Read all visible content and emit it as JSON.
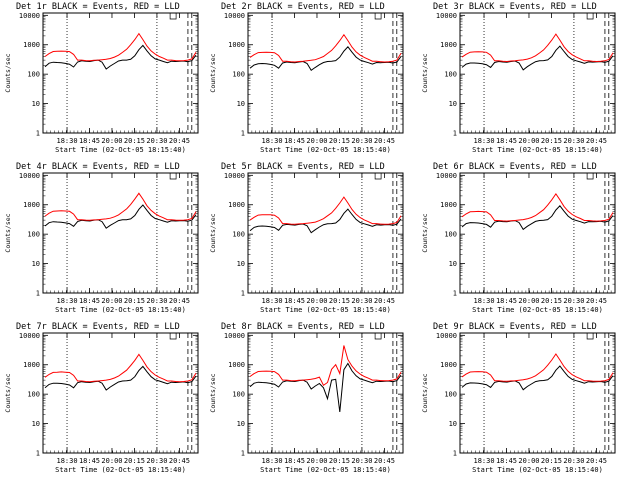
{
  "chart_data": [
    {
      "type": "line",
      "title": "Det 1r BLACK = Events, RED = LLD",
      "ylabel": "Counts/sec",
      "xlabel": "Start Time (02-Oct-05 18:15:40)",
      "x_ticks": [
        "18:30",
        "18:45",
        "20:00",
        "20:15",
        "20:30",
        "20:45"
      ],
      "y_ticks": [
        "1",
        "10",
        "100",
        "1000",
        "10000"
      ],
      "yscale": "log",
      "ylim": [
        1,
        12000
      ],
      "vlines_dotted": [
        "18:30",
        "20:30"
      ],
      "vlines_dashed": [
        "20:50",
        "20:52"
      ],
      "series": [
        {
          "color": "#000000",
          "values": [
            180,
            235,
            255,
            250,
            245,
            232,
            218,
            175,
            260,
            285,
            275,
            270,
            290,
            300,
            255,
            150,
            190,
            230,
            280,
            300,
            300,
            320,
            420,
            680,
            950,
            620,
            420,
            330,
            300,
            270,
            245,
            275,
            270,
            275,
            280,
            265,
            290,
            440
          ]
        },
        {
          "color": "#ff0000",
          "values": [
            400,
            500,
            590,
            600,
            610,
            600,
            585,
            470,
            300,
            300,
            290,
            285,
            295,
            300,
            310,
            320,
            340,
            380,
            440,
            550,
            700,
            1000,
            1500,
            2400,
            1500,
            900,
            620,
            480,
            400,
            350,
            300,
            300,
            290,
            285,
            290,
            300,
            330,
            560
          ]
        }
      ]
    },
    {
      "type": "line",
      "title": "Det 2r BLACK = Events, RED = LLD",
      "ylabel": "Counts/sec",
      "xlabel": "Start Time (02-Oct-05 18:15:40)",
      "x_ticks": [
        "18:30",
        "18:45",
        "20:00",
        "20:15",
        "20:30",
        "20:45"
      ],
      "y_ticks": [
        "1",
        "10",
        "100",
        "1000",
        "10000"
      ],
      "yscale": "log",
      "ylim": [
        1,
        12000
      ],
      "vlines_dotted": [
        "18:30",
        "20:30"
      ],
      "vlines_dashed": [
        "20:50",
        "20:52"
      ],
      "series": [
        {
          "color": "#000000",
          "values": [
            160,
            205,
            225,
            230,
            225,
            215,
            200,
            160,
            240,
            260,
            250,
            245,
            260,
            270,
            230,
            135,
            170,
            210,
            250,
            270,
            275,
            290,
            380,
            610,
            850,
            560,
            380,
            300,
            270,
            245,
            220,
            250,
            245,
            250,
            255,
            240,
            260,
            400
          ]
        },
        {
          "color": "#ff0000",
          "values": [
            370,
            460,
            540,
            550,
            560,
            550,
            535,
            430,
            275,
            275,
            265,
            260,
            270,
            275,
            285,
            295,
            310,
            350,
            400,
            505,
            640,
            920,
            1380,
            2200,
            1380,
            830,
            570,
            440,
            370,
            320,
            275,
            275,
            265,
            260,
            265,
            275,
            300,
            510
          ]
        }
      ]
    },
    {
      "type": "line",
      "title": "Det 3r BLACK = Events, RED = LLD",
      "ylabel": "Counts/sec",
      "xlabel": "Start Time (02-Oct-05 18:15:40)",
      "x_ticks": [
        "18:30",
        "18:45",
        "20:00",
        "20:15",
        "20:30",
        "20:45"
      ],
      "y_ticks": [
        "1",
        "10",
        "100",
        "1000",
        "10000"
      ],
      "yscale": "log",
      "ylim": [
        1,
        12000
      ],
      "vlines_dotted": [
        "18:30",
        "20:30"
      ],
      "vlines_dashed": [
        "20:50",
        "20:52"
      ],
      "series": [
        {
          "color": "#000000",
          "values": [
            170,
            220,
            240,
            240,
            235,
            225,
            210,
            170,
            250,
            270,
            260,
            255,
            270,
            280,
            240,
            140,
            180,
            220,
            265,
            285,
            290,
            305,
            400,
            650,
            900,
            590,
            400,
            315,
            285,
            260,
            232,
            262,
            258,
            262,
            268,
            252,
            275,
            420
          ]
        },
        {
          "color": "#ff0000",
          "values": [
            380,
            475,
            560,
            570,
            580,
            570,
            555,
            445,
            285,
            285,
            275,
            270,
            280,
            285,
            295,
            305,
            325,
            360,
            420,
            525,
            670,
            960,
            1440,
            2300,
            1440,
            860,
            590,
            455,
            380,
            330,
            285,
            285,
            275,
            270,
            275,
            285,
            315,
            530
          ]
        }
      ]
    },
    {
      "type": "line",
      "title": "Det 4r BLACK = Events, RED = LLD",
      "ylabel": "Counts/sec",
      "xlabel": "Start Time (02-Oct-05 18:15:40)",
      "x_ticks": [
        "18:30",
        "18:45",
        "20:00",
        "20:15",
        "20:30",
        "20:45"
      ],
      "y_ticks": [
        "1",
        "10",
        "100",
        "1000",
        "10000"
      ],
      "yscale": "log",
      "ylim": [
        1,
        12000
      ],
      "vlines_dotted": [
        "18:30",
        "20:30"
      ],
      "vlines_dashed": [
        "20:50",
        "20:52"
      ],
      "series": [
        {
          "color": "#000000",
          "values": [
            190,
            245,
            265,
            260,
            255,
            242,
            228,
            185,
            270,
            295,
            285,
            280,
            300,
            310,
            265,
            160,
            200,
            240,
            290,
            310,
            310,
            330,
            430,
            700,
            980,
            640,
            430,
            340,
            310,
            280,
            255,
            285,
            280,
            285,
            290,
            275,
            300,
            460
          ]
        },
        {
          "color": "#ff0000",
          "values": [
            410,
            515,
            605,
            615,
            625,
            615,
            600,
            480,
            310,
            310,
            300,
            295,
            305,
            310,
            320,
            330,
            350,
            390,
            450,
            565,
            720,
            1030,
            1550,
            2450,
            1550,
            920,
            640,
            495,
            410,
            360,
            310,
            310,
            300,
            295,
            300,
            310,
            340,
            580
          ]
        }
      ]
    },
    {
      "type": "line",
      "title": "Det 5r BLACK = Events, RED = LLD",
      "ylabel": "Counts/sec",
      "xlabel": "Start Time (02-Oct-05 18:15:40)",
      "x_ticks": [
        "18:30",
        "18:45",
        "20:00",
        "20:15",
        "20:30",
        "20:45"
      ],
      "y_ticks": [
        "1",
        "10",
        "100",
        "1000",
        "10000"
      ],
      "yscale": "log",
      "ylim": [
        1,
        12000
      ],
      "vlines_dotted": [
        "18:30",
        "20:30"
      ],
      "vlines_dashed": [
        "20:50",
        "20:52"
      ],
      "series": [
        {
          "color": "#000000",
          "values": [
            130,
            170,
            185,
            190,
            185,
            178,
            168,
            135,
            200,
            215,
            208,
            204,
            215,
            222,
            192,
            112,
            142,
            175,
            210,
            225,
            228,
            240,
            315,
            510,
            710,
            465,
            318,
            250,
            225,
            205,
            184,
            208,
            204,
            208,
            212,
            200,
            218,
            330
          ]
        },
        {
          "color": "#ff0000",
          "values": [
            300,
            375,
            445,
            455,
            460,
            455,
            440,
            355,
            228,
            228,
            220,
            216,
            224,
            228,
            236,
            244,
            258,
            290,
            335,
            420,
            530,
            760,
            1150,
            1820,
            1150,
            690,
            475,
            365,
            305,
            265,
            228,
            228,
            220,
            216,
            220,
            228,
            250,
            420
          ]
        }
      ]
    },
    {
      "type": "line",
      "title": "Det 6r BLACK = Events, RED = LLD",
      "ylabel": "Counts/sec",
      "xlabel": "Start Time (02-Oct-05 18:15:40)",
      "x_ticks": [
        "18:30",
        "18:45",
        "20:00",
        "20:15",
        "20:30",
        "20:45"
      ],
      "y_ticks": [
        "1",
        "10",
        "100",
        "1000",
        "10000"
      ],
      "yscale": "log",
      "ylim": [
        1,
        12000
      ],
      "vlines_dotted": [
        "18:30",
        "20:30"
      ],
      "vlines_dashed": [
        "20:50",
        "20:52"
      ],
      "series": [
        {
          "color": "#000000",
          "values": [
            175,
            228,
            248,
            245,
            240,
            228,
            214,
            172,
            255,
            278,
            268,
            263,
            280,
            290,
            248,
            145,
            185,
            225,
            272,
            292,
            295,
            312,
            408,
            665,
            920,
            605,
            410,
            322,
            292,
            265,
            238,
            268,
            264,
            268,
            274,
            258,
            282,
            430
          ]
        },
        {
          "color": "#ff0000",
          "values": [
            390,
            490,
            575,
            585,
            595,
            585,
            570,
            455,
            292,
            292,
            282,
            277,
            287,
            292,
            302,
            312,
            332,
            368,
            428,
            535,
            680,
            975,
            1470,
            2340,
            1470,
            880,
            605,
            465,
            390,
            340,
            292,
            292,
            282,
            277,
            282,
            292,
            322,
            545
          ]
        }
      ]
    },
    {
      "type": "line",
      "title": "Det 7r BLACK = Events, RED = LLD",
      "ylabel": "Counts/sec",
      "xlabel": "Start Time (02-Oct-05 18:15:40)",
      "x_ticks": [
        "18:30",
        "18:45",
        "20:00",
        "20:15",
        "20:30",
        "20:45"
      ],
      "y_ticks": [
        "1",
        "10",
        "100",
        "1000",
        "10000"
      ],
      "yscale": "log",
      "ylim": [
        1,
        12000
      ],
      "vlines_dotted": [
        "18:30",
        "20:30"
      ],
      "vlines_dashed": [
        "20:50",
        "20:52"
      ],
      "series": [
        {
          "color": "#000000",
          "values": [
            165,
            215,
            235,
            235,
            230,
            220,
            205,
            165,
            245,
            265,
            255,
            250,
            265,
            275,
            235,
            138,
            175,
            215,
            260,
            280,
            285,
            300,
            392,
            635,
            880,
            575,
            392,
            308,
            280,
            252,
            226,
            256,
            250,
            256,
            262,
            246,
            268,
            410
          ]
        },
        {
          "color": "#ff0000",
          "values": [
            375,
            470,
            550,
            560,
            570,
            560,
            545,
            438,
            280,
            280,
            270,
            265,
            275,
            280,
            290,
            300,
            318,
            355,
            410,
            515,
            655,
            940,
            1410,
            2250,
            1410,
            845,
            580,
            448,
            375,
            325,
            280,
            280,
            270,
            265,
            270,
            280,
            308,
            520
          ]
        }
      ]
    },
    {
      "type": "line",
      "title": "Det 8r BLACK = Events, RED = LLD",
      "ylabel": "Counts/sec",
      "xlabel": "Start Time (02-Oct-05 18:15:40)",
      "x_ticks": [
        "18:30",
        "18:45",
        "20:00",
        "20:15",
        "20:30",
        "20:45"
      ],
      "y_ticks": [
        "1",
        "10",
        "100",
        "1000",
        "10000"
      ],
      "yscale": "log",
      "ylim": [
        1,
        12000
      ],
      "vlines_dotted": [
        "18:30",
        "20:30"
      ],
      "vlines_dashed": [
        "20:50",
        "20:52"
      ],
      "series": [
        {
          "color": "#000000",
          "values": [
            180,
            235,
            255,
            250,
            245,
            232,
            218,
            175,
            260,
            285,
            275,
            270,
            290,
            300,
            255,
            150,
            190,
            230,
            165,
            70,
            300,
            320,
            25,
            680,
            1100,
            620,
            420,
            330,
            300,
            270,
            245,
            275,
            270,
            275,
            280,
            265,
            290,
            440
          ]
        },
        {
          "color": "#ff0000",
          "values": [
            400,
            500,
            590,
            600,
            610,
            600,
            585,
            470,
            300,
            300,
            290,
            285,
            295,
            300,
            310,
            320,
            340,
            380,
            200,
            250,
            700,
            1000,
            500,
            4500,
            1500,
            900,
            620,
            480,
            400,
            350,
            300,
            300,
            290,
            285,
            290,
            300,
            330,
            560
          ]
        }
      ]
    },
    {
      "type": "line",
      "title": "Det 9r BLACK = Events, RED = LLD",
      "ylabel": "Counts/sec",
      "xlabel": "Start Time (02-Oct-05 18:15:40)",
      "x_ticks": [
        "18:30",
        "18:45",
        "20:00",
        "20:15",
        "20:30",
        "20:45"
      ],
      "y_ticks": [
        "1",
        "10",
        "100",
        "1000",
        "10000"
      ],
      "yscale": "log",
      "ylim": [
        1,
        12000
      ],
      "vlines_dotted": [
        "18:30",
        "20:30"
      ],
      "vlines_dashed": [
        "20:50",
        "20:52"
      ],
      "series": [
        {
          "color": "#000000",
          "values": [
            170,
            222,
            242,
            240,
            235,
            224,
            210,
            170,
            252,
            272,
            262,
            258,
            272,
            282,
            242,
            142,
            182,
            222,
            268,
            288,
            292,
            308,
            402,
            655,
            905,
            595,
            402,
            318,
            288,
            262,
            236,
            265,
            260,
            265,
            270,
            254,
            278,
            425
          ]
        },
        {
          "color": "#ff0000",
          "values": [
            385,
            482,
            565,
            575,
            585,
            575,
            560,
            448,
            288,
            288,
            278,
            273,
            283,
            288,
            298,
            308,
            328,
            364,
            422,
            528,
            672,
            965,
            1455,
            2320,
            1455,
            870,
            598,
            460,
            385,
            335,
            288,
            288,
            278,
            273,
            278,
            288,
            318,
            538
          ]
        }
      ]
    }
  ]
}
